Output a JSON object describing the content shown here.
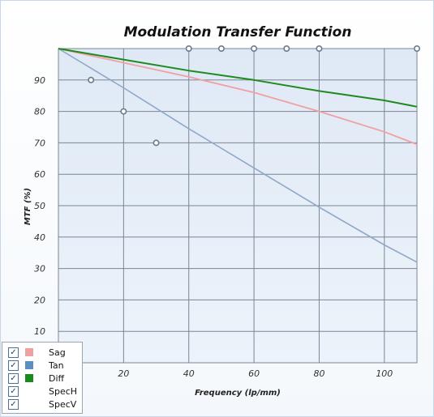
{
  "chart_data": {
    "type": "line",
    "title": "Modulation Transfer Function",
    "xlabel": "Frequency (lp/mm)",
    "ylabel": "MTF (%)",
    "xlim": [
      0,
      110
    ],
    "ylim": [
      0,
      100
    ],
    "xticks": [
      20,
      40,
      60,
      80,
      100
    ],
    "yticks": [
      10,
      20,
      30,
      40,
      50,
      60,
      70,
      80,
      90
    ],
    "grid": true,
    "legend_position": "bottom-left",
    "series": [
      {
        "name": "Sag",
        "color": "#f0a0a0",
        "x": [
          0,
          20,
          40,
          60,
          80,
          100,
          110
        ],
        "y": [
          100,
          95.5,
          91,
          86,
          80,
          73.5,
          69.5
        ]
      },
      {
        "name": "Tan",
        "color": "#8fa7c8",
        "x": [
          0,
          20,
          40,
          60,
          80,
          100,
          110
        ],
        "y": [
          100,
          87.5,
          74.5,
          62,
          49.5,
          37.5,
          32
        ]
      },
      {
        "name": "Diff",
        "color": "#1f8a1f",
        "x": [
          0,
          20,
          40,
          60,
          80,
          100,
          110
        ],
        "y": [
          100,
          96.5,
          93,
          90,
          86.5,
          83.5,
          81.5
        ]
      },
      {
        "name": "SpecH",
        "color": "#6b7a8c",
        "marker": "circle",
        "x": [
          10,
          20,
          30
        ],
        "y": [
          90,
          80,
          70
        ]
      },
      {
        "name": "SpecV",
        "color": "#6b7a8c",
        "marker": "circle",
        "x": [
          40,
          50,
          60,
          70,
          80,
          110
        ],
        "y": [
          100,
          100,
          100,
          100,
          100,
          100
        ]
      }
    ]
  },
  "legend": {
    "items": [
      {
        "label": "Sag",
        "color": "#f0a0a0",
        "checked": "✓"
      },
      {
        "label": "Tan",
        "color": "#5b8fc2",
        "checked": "✓"
      },
      {
        "label": "Diff",
        "color": "#1a8a1a",
        "checked": "✓"
      },
      {
        "label": "SpecH",
        "color": "",
        "checked": "✓"
      },
      {
        "label": "SpecV",
        "color": "",
        "checked": "✓"
      }
    ]
  }
}
